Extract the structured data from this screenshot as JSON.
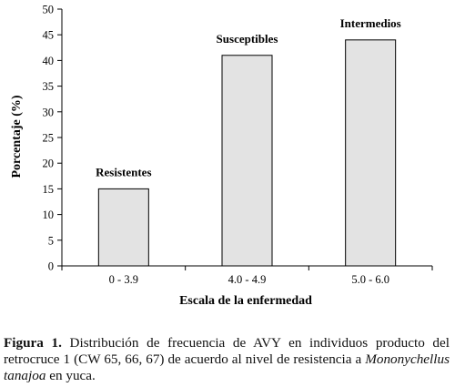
{
  "chart_data": {
    "type": "bar",
    "categories": [
      "0 - 3.9",
      "4.0 - 4.9",
      "5.0 - 6.0"
    ],
    "values": [
      15,
      41,
      44
    ],
    "bar_labels": [
      "Resistentes",
      "Susceptibles",
      "Intermedios"
    ],
    "xlabel": "Escala de la enfermedad",
    "ylabel": "Porcentaje (%)",
    "ylim": [
      0,
      50
    ],
    "yticks": [
      "0",
      "5",
      "10",
      "15",
      "20",
      "25",
      "30",
      "35",
      "40",
      "45",
      "50"
    ],
    "grid": false,
    "bar_color": "#e3e3e3",
    "bar_edge_color": "#000000"
  },
  "caption": {
    "label": "Figura 1.",
    "text_before": " Distribución de frecuencia de AVY en individuos producto del retrocruce 1 (CW 65, 66, 67) de acuerdo al nivel de resistencia a ",
    "species": "Mononychellus tanajoa",
    "text_after": " en yuca."
  }
}
